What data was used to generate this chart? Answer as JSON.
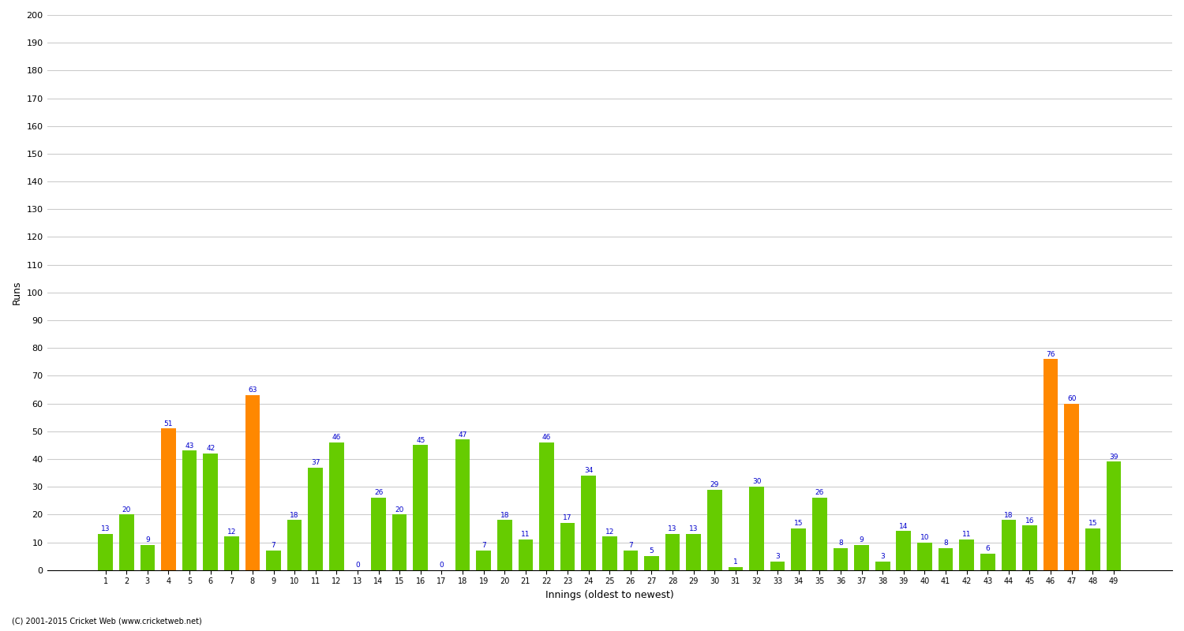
{
  "innings": [
    1,
    2,
    3,
    4,
    5,
    6,
    7,
    8,
    9,
    10,
    11,
    12,
    13,
    14,
    15,
    16,
    17,
    18,
    19,
    20,
    21,
    22,
    23,
    24,
    25,
    26,
    27,
    28,
    29,
    30,
    31,
    32,
    33,
    34,
    35,
    36,
    37,
    38,
    39,
    40,
    41,
    42,
    43,
    44,
    45,
    46,
    47,
    48,
    49
  ],
  "values": [
    13,
    20,
    9,
    51,
    43,
    42,
    12,
    63,
    7,
    18,
    37,
    46,
    0,
    26,
    20,
    45,
    0,
    47,
    7,
    18,
    11,
    46,
    17,
    34,
    12,
    7,
    5,
    13,
    13,
    29,
    1,
    30,
    3,
    15,
    26,
    8,
    9,
    3,
    14,
    10,
    8,
    11,
    6,
    18,
    16,
    76,
    60,
    15,
    39
  ],
  "is_orange": [
    false,
    false,
    false,
    true,
    false,
    false,
    false,
    true,
    false,
    false,
    false,
    false,
    false,
    false,
    false,
    false,
    false,
    false,
    false,
    false,
    false,
    false,
    false,
    false,
    false,
    false,
    false,
    false,
    false,
    false,
    false,
    false,
    false,
    false,
    false,
    false,
    false,
    false,
    false,
    false,
    false,
    false,
    false,
    false,
    false,
    true,
    true,
    false,
    false
  ],
  "xlabel": "Innings (oldest to newest)",
  "ylabel": "Runs",
  "ylim": [
    0,
    200
  ],
  "yticks": [
    0,
    10,
    20,
    30,
    40,
    50,
    60,
    70,
    80,
    90,
    100,
    110,
    120,
    130,
    140,
    150,
    160,
    170,
    180,
    190,
    200
  ],
  "green_color": "#66cc00",
  "orange_color": "#ff8800",
  "bg_color": "#ffffff",
  "grid_color": "#cccccc",
  "label_color": "#0000cc",
  "footer": "(C) 2001-2015 Cricket Web (www.cricketweb.net)"
}
